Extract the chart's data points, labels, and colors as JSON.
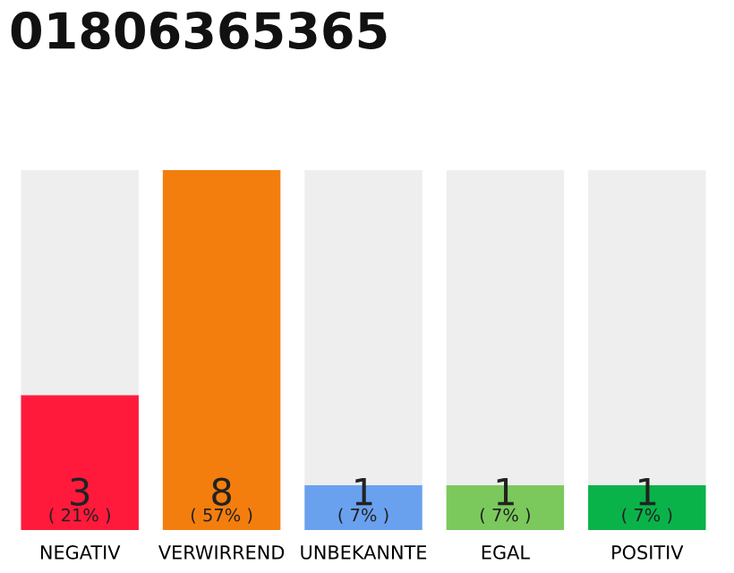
{
  "chart_data": {
    "type": "bar",
    "title": "01806365365",
    "categories": [
      "NEGATIV",
      "VERWIRREND",
      "UNBEKANNTE",
      "EGAL",
      "POSITIV"
    ],
    "stacked": true,
    "ylim": [
      0,
      8
    ],
    "tick_labels": "x",
    "grid": false,
    "series": [
      {
        "colors": [
          "#ff1a3c",
          "#f47e0d",
          "#6aa1ef",
          "#7bc95c",
          "#0ab34a"
        ],
        "values": [
          3,
          8,
          1,
          1,
          1
        ],
        "value_labels": [
          "3\n( 21% )",
          "8\n( 57% )",
          "1\n( 7% )",
          "1\n( 7% )",
          "1\n( 7% )"
        ]
      },
      {
        "color": "#eeeeee",
        "values": [
          5,
          0,
          7,
          7,
          7
        ]
      }
    ]
  }
}
